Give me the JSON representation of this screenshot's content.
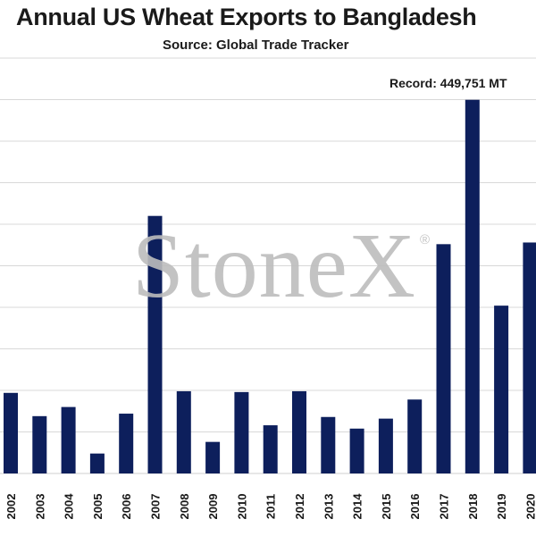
{
  "chart_data": {
    "type": "bar",
    "title": "Annual US Wheat Exports to Bangladesh",
    "subtitle": "Source: Global Trade Tracker",
    "annotation": "Record: 449,751 MT",
    "watermark": "StoneX",
    "watermark_mark": "®",
    "bar_color": "#0d1f5c",
    "grid_color": "#d8d8d8",
    "grid": true,
    "ylim": [
      0,
      500000
    ],
    "categories": [
      "2002",
      "2003",
      "2004",
      "2005",
      "2006",
      "2007",
      "2008",
      "2009",
      "2010",
      "2011",
      "2012",
      "2013",
      "2014",
      "2015",
      "2016",
      "2017",
      "2018",
      "2019",
      "2020"
    ],
    "values": [
      97000,
      69000,
      80000,
      24000,
      72000,
      310000,
      99000,
      38000,
      98000,
      58000,
      99000,
      68000,
      54000,
      66000,
      89000,
      276000,
      449751,
      202000,
      278000
    ]
  }
}
